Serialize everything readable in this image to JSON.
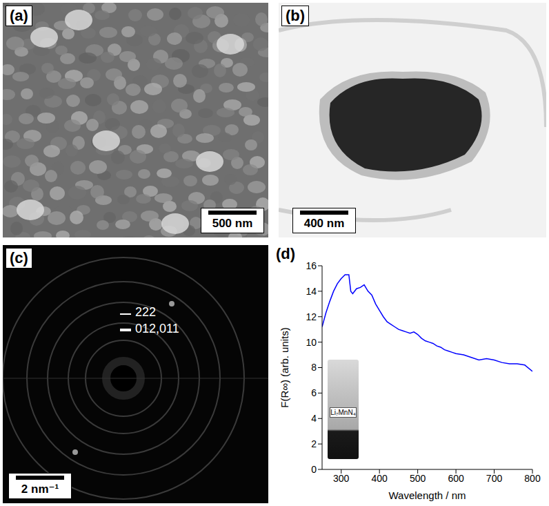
{
  "panels": [
    {
      "letter": "(a)",
      "scale_bar": "500 nm"
    },
    {
      "letter": "(b)",
      "scale_bar": "400 nm"
    },
    {
      "letter": "(c)",
      "scale_bar": "2 nm⁻¹",
      "ring_labels": [
        "222",
        "012,011"
      ]
    },
    {
      "letter": "(d)",
      "inset_label": "Li₇MnN₄"
    }
  ],
  "chart_data": {
    "type": "line",
    "x_label": "Wavelength / nm",
    "y_label": "F(R∞) (arb. units)",
    "xlim": [
      250,
      800
    ],
    "ylim": [
      0,
      16
    ],
    "xticks": [
      300,
      400,
      500,
      600,
      700,
      800
    ],
    "yticks": [
      0,
      2,
      4,
      6,
      8,
      10,
      12,
      14,
      16
    ],
    "grid": false,
    "color": "#0000ff",
    "x": [
      250,
      260,
      270,
      280,
      290,
      300,
      310,
      320,
      325,
      330,
      340,
      350,
      360,
      370,
      380,
      390,
      400,
      410,
      420,
      430,
      440,
      450,
      460,
      470,
      480,
      490,
      500,
      510,
      520,
      530,
      540,
      550,
      560,
      570,
      580,
      590,
      600,
      620,
      640,
      660,
      680,
      700,
      720,
      740,
      760,
      780,
      800
    ],
    "values": [
      11.2,
      12.3,
      13.2,
      14.0,
      14.6,
      15.0,
      15.3,
      15.3,
      14.0,
      13.8,
      14.2,
      14.3,
      14.5,
      14.0,
      13.7,
      13.0,
      12.5,
      12.0,
      11.6,
      11.4,
      11.2,
      11.0,
      10.9,
      10.8,
      10.7,
      10.8,
      10.6,
      10.3,
      10.1,
      10.0,
      9.9,
      9.7,
      9.6,
      9.4,
      9.3,
      9.2,
      9.1,
      9.0,
      8.8,
      8.6,
      8.7,
      8.6,
      8.4,
      8.3,
      8.3,
      8.2,
      7.7
    ]
  }
}
